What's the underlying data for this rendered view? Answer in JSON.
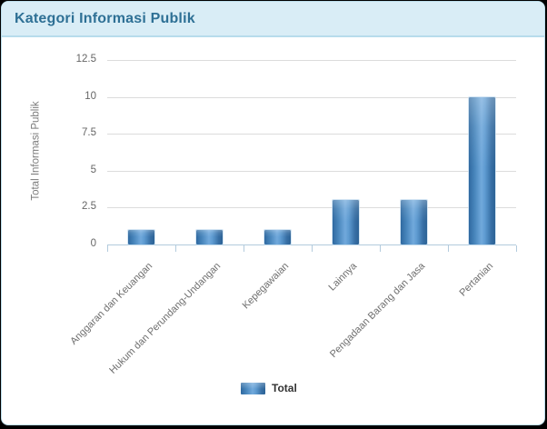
{
  "header": {
    "title": "Kategori Informasi Publik"
  },
  "chart_data": {
    "type": "bar",
    "title": "Kategori Informasi Publik",
    "categories": [
      "Anggaran dan Keuangan",
      "Hukum dan Perundang-Undangan",
      "Kepegawaian",
      "Lainnya",
      "Pengadaan Barang dan Jasa",
      "Pertanian"
    ],
    "series": [
      {
        "name": "Total",
        "values": [
          1,
          1,
          1,
          3,
          3,
          10
        ]
      }
    ],
    "xlabel": "",
    "ylabel": "Total Informasi Publik",
    "ylim": [
      0,
      12.5
    ],
    "ytick_labels": [
      "0",
      "2.5",
      "5",
      "7.5",
      "10",
      "12.5"
    ],
    "grid": true,
    "legend_position": "bottom"
  },
  "legend": {
    "label": "Total"
  },
  "colors": {
    "header_bg": "#d9edf6",
    "header_text": "#2e7095",
    "header_border": "#b7dcec",
    "card_border": "#bcdeeb",
    "page_bg": "#000000",
    "bar_main": "#4886bc",
    "bar_light": "#71a9dc",
    "bar_dark": "#2f69a0",
    "axis_line": "#b3cbdd",
    "gridline": "#dcdcdc",
    "tick_text": "#666666"
  }
}
